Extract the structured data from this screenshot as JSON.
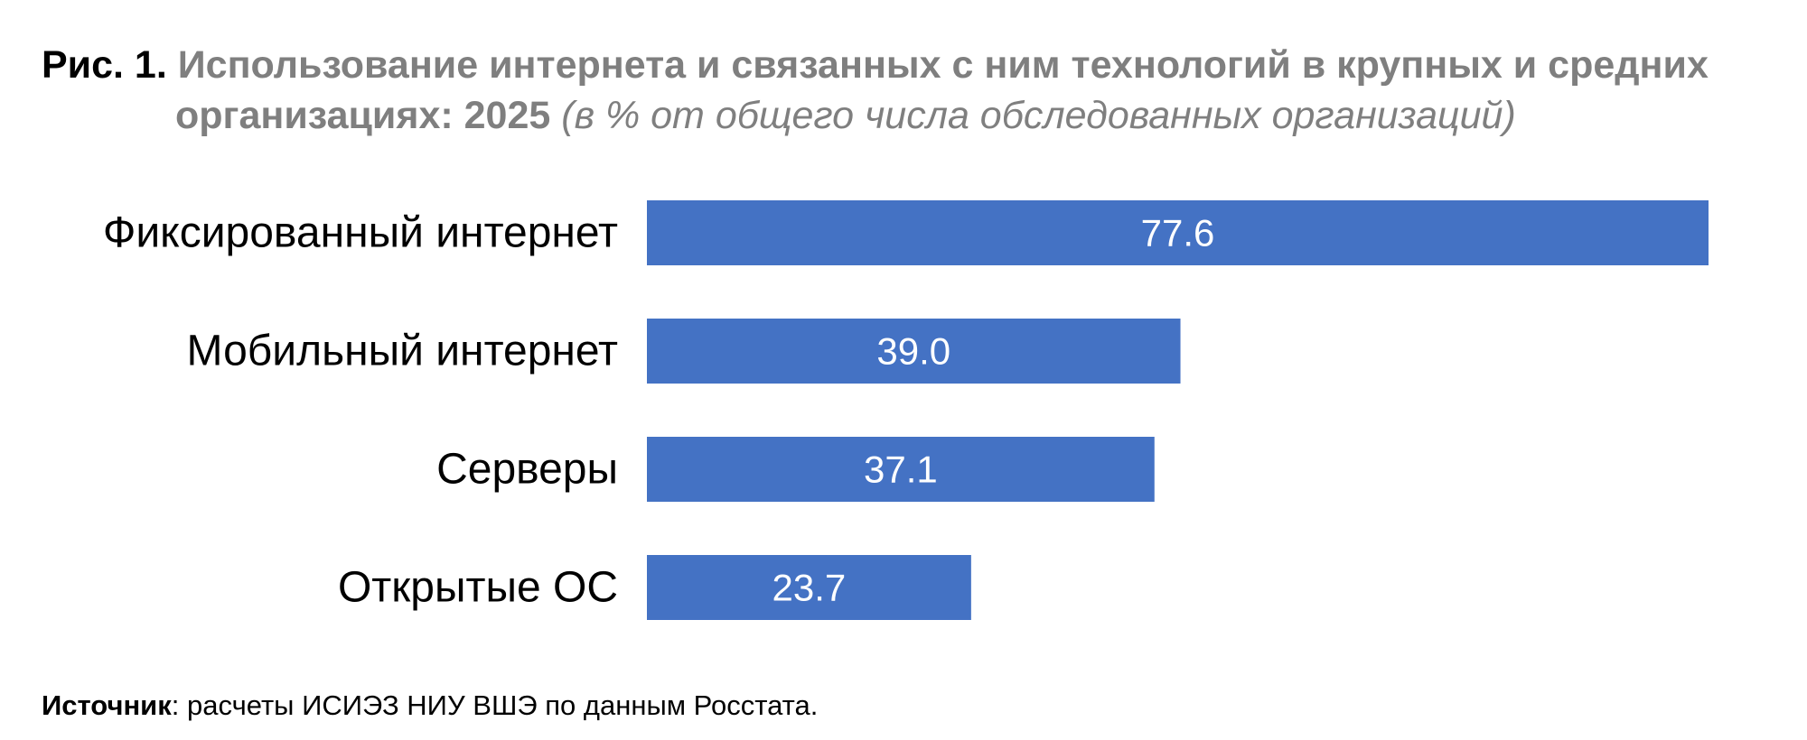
{
  "title": {
    "fig_label": "Рис. 1.",
    "text_line1": "Использование интернета и связанных с ним технологий в крупных и средних",
    "text_line2": "организациях: 2025",
    "unit": "(в % от общего числа обследованных организаций)"
  },
  "source": {
    "label": "Источник",
    "text": ": расчеты ИСИЭЗ НИУ ВШЭ по данным Росстата."
  },
  "colors": {
    "bar": "#4472c4",
    "title_gray": "#7f7f7f"
  },
  "chart_data": {
    "type": "bar",
    "orientation": "horizontal",
    "categories": [
      "Фиксированный интернет",
      "Мобильный интернет",
      "Серверы",
      "Открытые ОС"
    ],
    "values": [
      77.6,
      39.0,
      37.1,
      23.7
    ],
    "value_labels": [
      "77.6",
      "39.0",
      "37.1",
      "23.7"
    ],
    "xlim": [
      0,
      77.6
    ],
    "grid": false,
    "legend": "none",
    "title": "Использование интернета и связанных с ним технологий в крупных и средних организациях: 2025",
    "xlabel": "",
    "ylabel": ""
  }
}
